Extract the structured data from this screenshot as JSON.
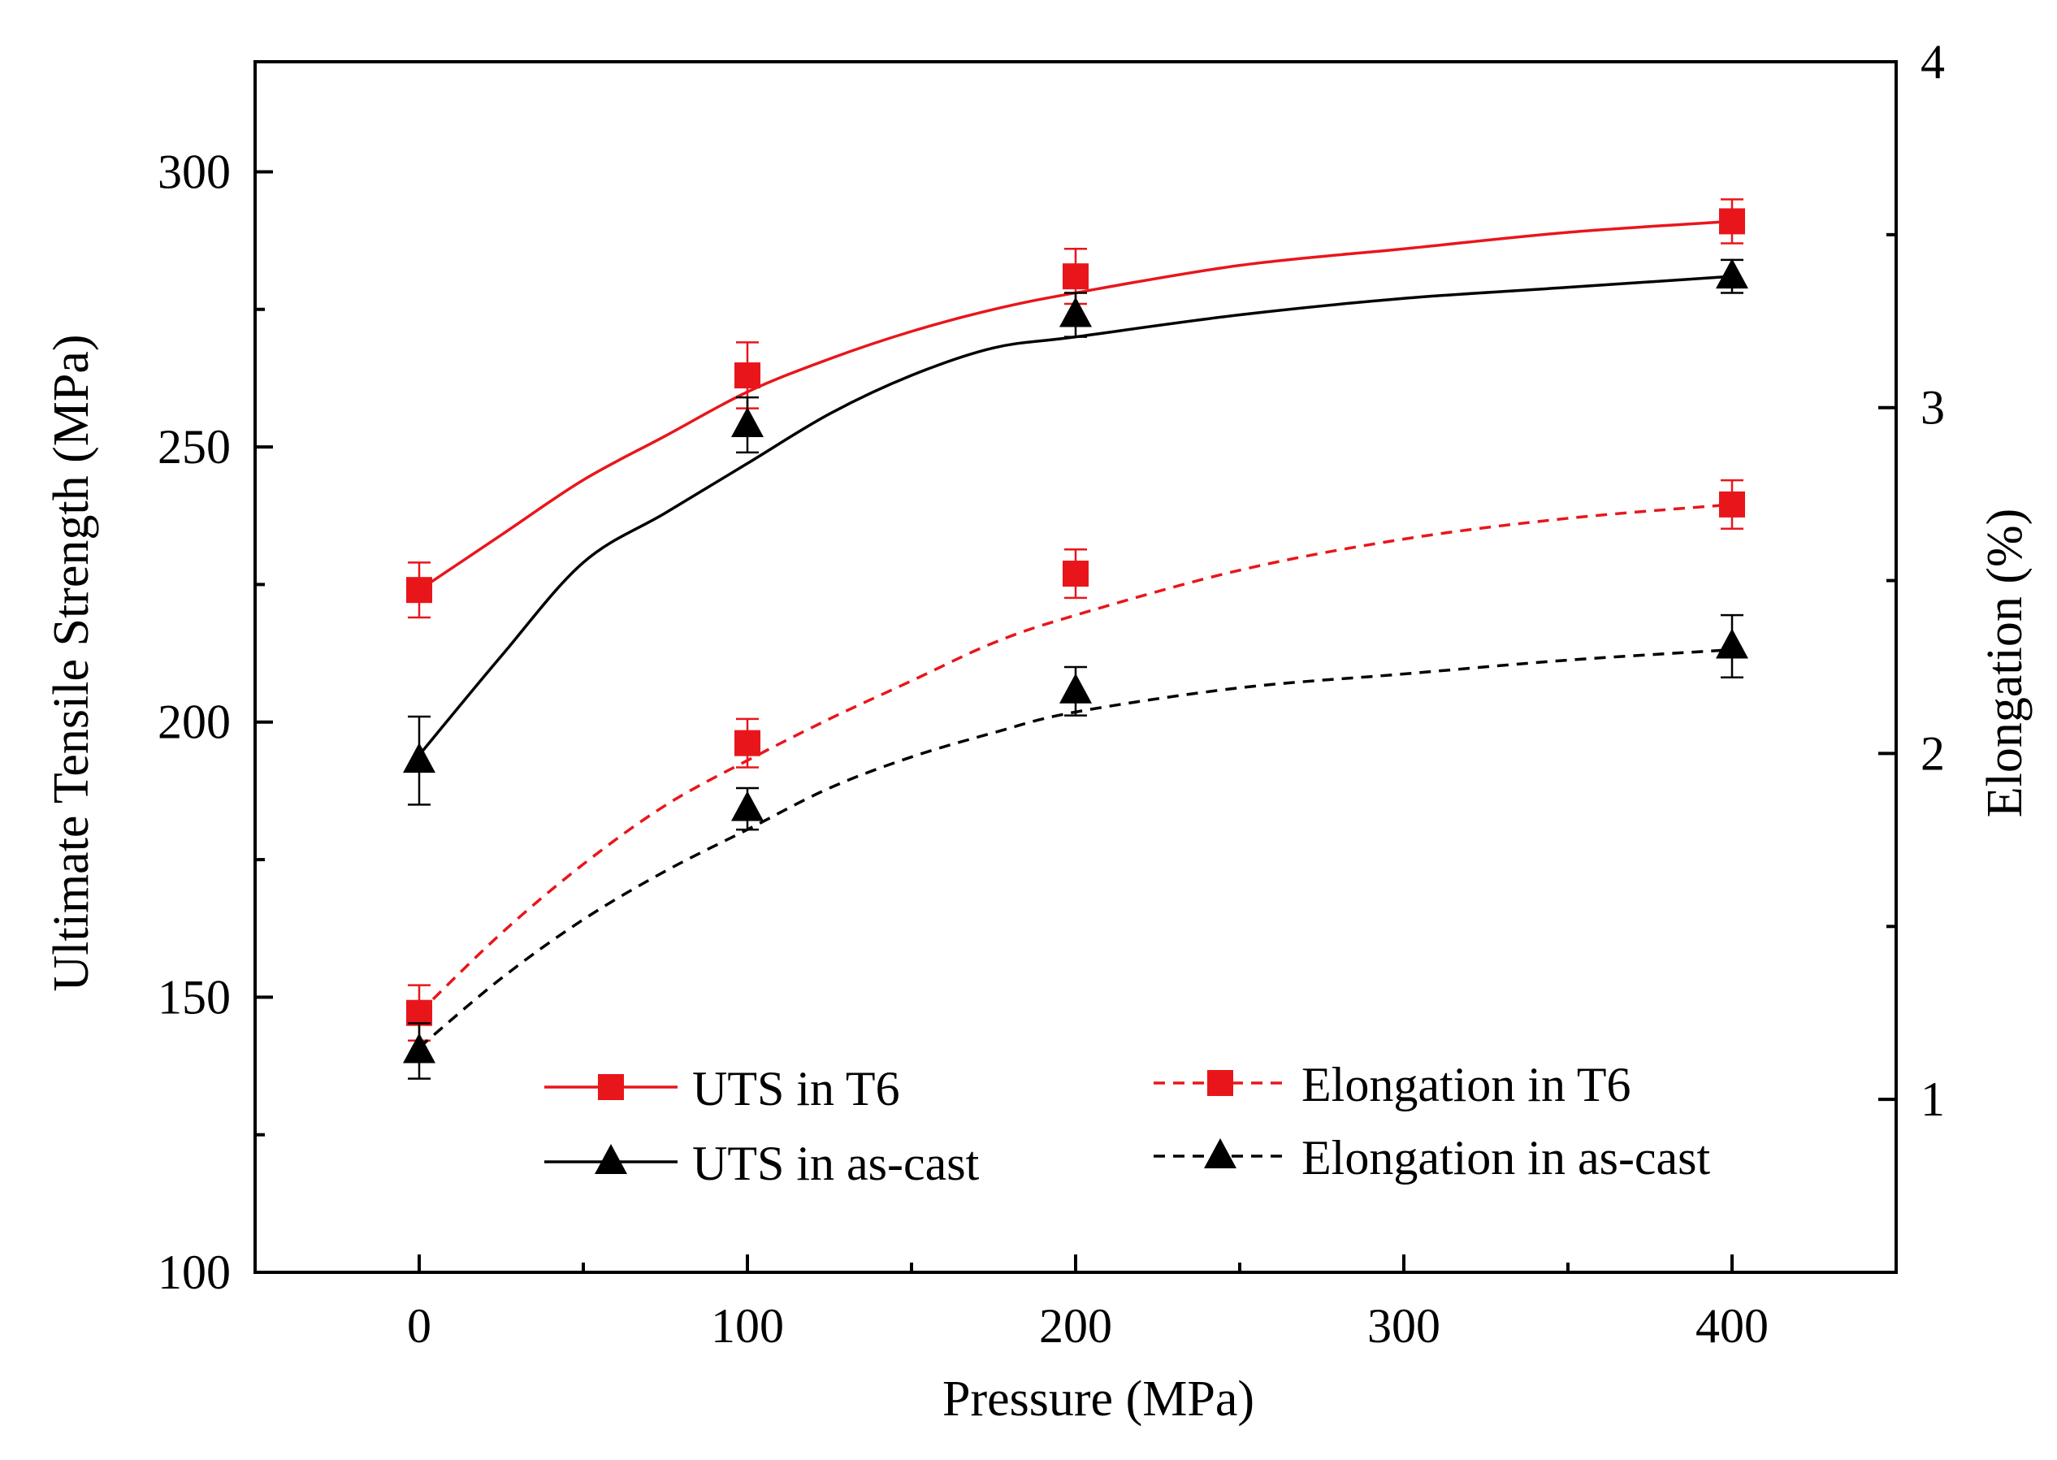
{
  "chart_data": {
    "type": "line",
    "title": "",
    "xlabel": "Pressure (MPa)",
    "ylabel": "Ultimate Tensile Strength (MPa)",
    "y2label": "Elongation (%)",
    "x_ticks": [
      0,
      100,
      200,
      300,
      400
    ],
    "xlim": [
      -50,
      450
    ],
    "y_ticks": [
      100,
      150,
      200,
      250,
      300
    ],
    "ylim": [
      100,
      320
    ],
    "y2_ticks": [
      1,
      2,
      3,
      4
    ],
    "y2lim": [
      0.5,
      4
    ],
    "legend_position": "bottom-center",
    "series": [
      {
        "name": "UTS in T6",
        "axis": "left",
        "color": "#e8161b",
        "marker": "square",
        "line_style": "solid",
        "x": [
          0,
          100,
          200,
          400
        ],
        "values": [
          224,
          263,
          281,
          291
        ],
        "errors": [
          5,
          6,
          5,
          4
        ],
        "fit_x": [
          0,
          25,
          50,
          75,
          100,
          125,
          150,
          175,
          200,
          250,
          300,
          350,
          400
        ],
        "fit_y": [
          224,
          234,
          244,
          252,
          260,
          266,
          271,
          275,
          278,
          283,
          286,
          289,
          291
        ]
      },
      {
        "name": "UTS in as-cast",
        "axis": "left",
        "color": "#000000",
        "marker": "triangle",
        "line_style": "solid",
        "x": [
          0,
          100,
          200,
          400
        ],
        "values": [
          193,
          254,
          274,
          281
        ],
        "errors": [
          8,
          5,
          4,
          3
        ],
        "fit_x": [
          0,
          25,
          50,
          75,
          100,
          125,
          150,
          175,
          200,
          250,
          300,
          350,
          400
        ],
        "fit_y": [
          194,
          212,
          229,
          238,
          247,
          256,
          263,
          268,
          270,
          274,
          277,
          279,
          281
        ]
      },
      {
        "name": "Elongation in T6",
        "axis": "right",
        "color": "#e8161b",
        "marker": "square",
        "line_style": "dashed",
        "x": [
          0,
          100,
          200,
          400
        ],
        "values": [
          1.25,
          2.03,
          2.52,
          2.72
        ],
        "errors": [
          0.08,
          0.07,
          0.07,
          0.07
        ],
        "fit_x": [
          0,
          25,
          50,
          75,
          100,
          125,
          150,
          175,
          200,
          250,
          300,
          350,
          400
        ],
        "fit_y": [
          1.25,
          1.48,
          1.68,
          1.85,
          1.98,
          2.1,
          2.21,
          2.32,
          2.4,
          2.53,
          2.62,
          2.68,
          2.72
        ]
      },
      {
        "name": "Elongation in as-cast",
        "axis": "right",
        "color": "#000000",
        "marker": "triangle",
        "line_style": "dashed",
        "x": [
          0,
          100,
          200,
          400
        ],
        "values": [
          1.14,
          1.84,
          2.18,
          2.31
        ],
        "errors": [
          0.08,
          0.06,
          0.07,
          0.09
        ],
        "fit_x": [
          0,
          25,
          50,
          75,
          100,
          125,
          150,
          175,
          200,
          250,
          300,
          350,
          400
        ],
        "fit_y": [
          1.15,
          1.35,
          1.52,
          1.66,
          1.78,
          1.9,
          1.99,
          2.06,
          2.12,
          2.19,
          2.23,
          2.27,
          2.3
        ]
      }
    ]
  }
}
